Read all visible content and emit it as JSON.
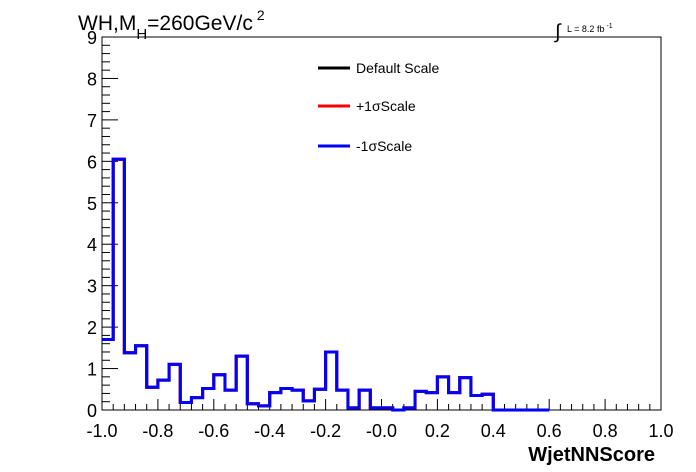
{
  "chart_data": {
    "type": "step",
    "title_main": "WH,M",
    "title_sub": "H",
    "title_rest": "=260GeV/c",
    "title_sup": "2",
    "lumi_label": "L = 8.2 fb",
    "lumi_sup": "-1",
    "xlabel": "WjetNNScore",
    "ylabel": "",
    "xlim": [
      -1.0,
      1.0
    ],
    "ylim": [
      0,
      9
    ],
    "x_ticks": [
      "-1.0",
      "-0.8",
      "-0.6",
      "-0.4",
      "-0.2",
      "-0.0",
      "0.2",
      "0.4",
      "0.6",
      "0.8",
      "1.0"
    ],
    "y_ticks": [
      "0",
      "1",
      "2",
      "3",
      "4",
      "5",
      "6",
      "7",
      "8",
      "9"
    ],
    "bin_width": 0.04,
    "x_start": -1.0,
    "legend": {
      "placement": "top-center",
      "entries": [
        {
          "label": "Default Scale",
          "color": "#000000"
        },
        {
          "label": "+1σScale",
          "color": "#ff0000"
        },
        {
          "label": "-1σScale",
          "color": "#0000ff"
        }
      ]
    },
    "series": [
      {
        "name": "Default Scale",
        "color": "#000000",
        "values": [
          1.7,
          6.05,
          1.38,
          1.55,
          0.55,
          0.72,
          1.1,
          0.18,
          0.3,
          0.52,
          0.85,
          0.48,
          1.3,
          0.15,
          0.1,
          0.42,
          0.52,
          0.48,
          0.22,
          0.5,
          1.4,
          0.48,
          0.05,
          0.48,
          0.05,
          0.05,
          0.0,
          0.05,
          0.45,
          0.42,
          0.8,
          0.42,
          0.78,
          0.35,
          0.38,
          0.0,
          0.0,
          0.0,
          0.0,
          0.0
        ]
      },
      {
        "name": "+1σScale",
        "color": "#ff0000",
        "values": [
          1.7,
          6.05,
          1.38,
          1.55,
          0.55,
          0.72,
          1.1,
          0.18,
          0.3,
          0.52,
          0.85,
          0.48,
          1.3,
          0.15,
          0.1,
          0.42,
          0.52,
          0.48,
          0.22,
          0.5,
          1.4,
          0.48,
          0.05,
          0.48,
          0.05,
          0.05,
          0.0,
          0.05,
          0.45,
          0.42,
          0.8,
          0.42,
          0.78,
          0.35,
          0.38,
          0.0,
          0.0,
          0.0,
          0.0,
          0.0
        ]
      },
      {
        "name": "-1σScale",
        "color": "#0000ff",
        "values": [
          1.7,
          6.05,
          1.38,
          1.55,
          0.55,
          0.72,
          1.1,
          0.18,
          0.3,
          0.52,
          0.85,
          0.48,
          1.3,
          0.15,
          0.1,
          0.42,
          0.52,
          0.48,
          0.22,
          0.5,
          1.4,
          0.48,
          0.05,
          0.48,
          0.05,
          0.05,
          0.0,
          0.05,
          0.45,
          0.42,
          0.8,
          0.42,
          0.78,
          0.35,
          0.38,
          0.0,
          0.0,
          0.0,
          0.0,
          0.0
        ]
      }
    ]
  }
}
